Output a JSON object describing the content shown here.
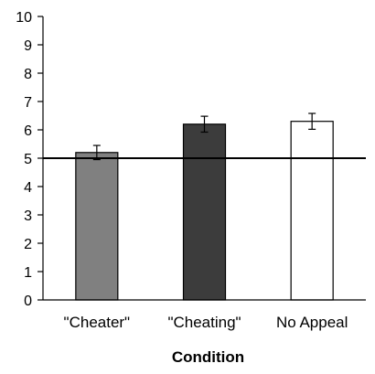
{
  "chart_data": {
    "type": "bar",
    "title": "",
    "xlabel": "Condition",
    "ylabel": "",
    "ylim": [
      0,
      10
    ],
    "yticks": [
      "0",
      "1",
      "2",
      "3",
      "4",
      "5",
      "6",
      "7",
      "8",
      "9",
      "10"
    ],
    "categories": [
      "\"Cheater\"",
      "\"Cheating\"",
      "No Appeal"
    ],
    "values": [
      5.2,
      6.2,
      6.3
    ],
    "error": [
      0.25,
      0.28,
      0.28
    ],
    "bar_colors": [
      "#808080",
      "#3c3c3c",
      "#ffffff"
    ],
    "reference_line": 5,
    "grid": false,
    "legend": false
  }
}
